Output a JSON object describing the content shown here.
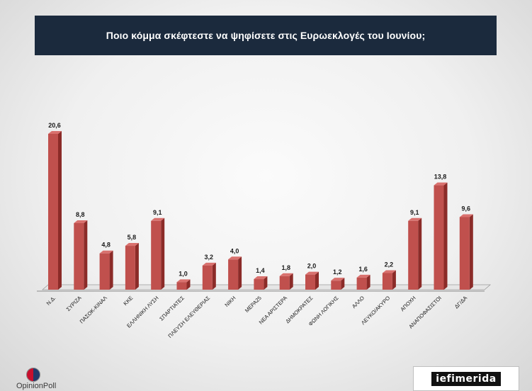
{
  "title": "Ποιο κόμμα σκέφτεστε να ψηφίσετε στις Ευρωεκλογές του Ιουνίου;",
  "logos": {
    "opinion_poll": "OpinionPoll",
    "iefimerida": "iefimerida"
  },
  "colors": {
    "title_bg": "#1b2a3d",
    "bar_front": "#c0504d",
    "bar_side": "#8b2b28",
    "bar_top": "#d9716e"
  },
  "chart_data": {
    "type": "bar",
    "title": "Ποιο κόμμα σκέφτεστε να ψηφίσετε στις Ευρωεκλογές του Ιουνίου;",
    "categories": [
      "Ν.Δ.",
      "ΣΥΡΙΖΑ",
      "ΠΑΣΟΚ-ΚΙΝΑΛ",
      "ΚΚΕ",
      "ΕΛΛΗΝΙΚΗ ΛΥΣΗ",
      "ΣΠΑΡΤΙΑΤΕΣ",
      "ΠΛΕΥΣΗ ΕΛΕΥΘΕΡΙΑΣ",
      "ΝΙΚΗ",
      "ΜΕΡΑ25",
      "ΝΕΑ ΑΡΙΣΤΕΡΑ",
      "ΔΗΜΟΚΡΑΤΕΣ",
      "ΦΩΝΗ ΛΟΓΙΚΗΣ",
      "ΑΛΛΟ",
      "ΛΕΥΚΟ/ΑΚΥΡΟ",
      "ΑΠΟΧΗ",
      "ΑΝΑΠΟΦΑΣΙΣΤΟΙ",
      "ΔΓ/ΔΑ"
    ],
    "values": [
      20.6,
      8.8,
      4.8,
      5.8,
      9.1,
      1.0,
      3.2,
      4.0,
      1.4,
      1.8,
      2.0,
      1.2,
      1.6,
      2.2,
      9.1,
      13.8,
      9.6
    ],
    "labels": [
      "20,6",
      "8,8",
      "4,8",
      "5,8",
      "9,1",
      "1,0",
      "3,2",
      "4,0",
      "1,4",
      "1,8",
      "2,0",
      "1,2",
      "1,6",
      "2,2",
      "9,1",
      "13,8",
      "9,6"
    ],
    "ylim": [
      0,
      22
    ],
    "grid": false,
    "legend": "none",
    "style": "3d-column"
  }
}
